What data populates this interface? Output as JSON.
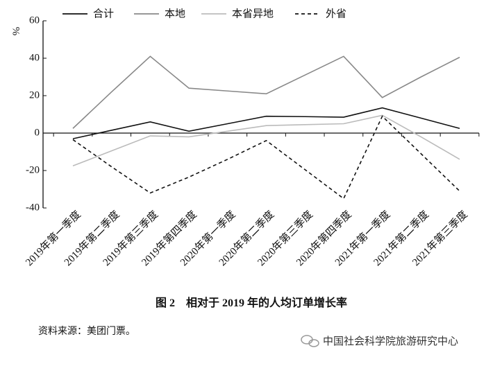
{
  "chart_data": {
    "type": "line",
    "y_label": "%",
    "categories": [
      "2019年第一季度",
      "2019年第二季度",
      "2019年第三季度",
      "2019年第四季度",
      "2020年第一季度",
      "2020年第二季度",
      "2020年第三季度",
      "2020年第四季度",
      "2021年第一季度",
      "2021年第二季度",
      "2021年第三季度"
    ],
    "series": [
      {
        "name": "合计",
        "color": "#111111",
        "dash": false,
        "values": [
          -3,
          1.5,
          6,
          1,
          5,
          9,
          8.8,
          8.5,
          13.5,
          8,
          2.5
        ]
      },
      {
        "name": "本地",
        "color": "#888888",
        "dash": false,
        "values": [
          2.5,
          22,
          41,
          24,
          22.5,
          21,
          31,
          41,
          19,
          30,
          40.5
        ]
      },
      {
        "name": "本省异地",
        "color": "#bbbbbb",
        "dash": false,
        "values": [
          -17.5,
          -9.5,
          -1.5,
          -2,
          1,
          4,
          4.5,
          5,
          9.5,
          -2,
          -14
        ]
      },
      {
        "name": "外省",
        "color": "#111111",
        "dash": true,
        "values": [
          -3.5,
          -18,
          -32,
          -23.5,
          -14,
          -4,
          -19.5,
          -35,
          9,
          -11,
          -31
        ]
      }
    ],
    "ylim": [
      -40,
      60
    ],
    "yticks": [
      -40,
      -20,
      0,
      20,
      40,
      60
    ],
    "caption": "图 2　相对于 2019 年的人均订单增长率",
    "source": "资料来源：美团门票。",
    "watermark": "中国社会科学院旅游研究中心"
  }
}
